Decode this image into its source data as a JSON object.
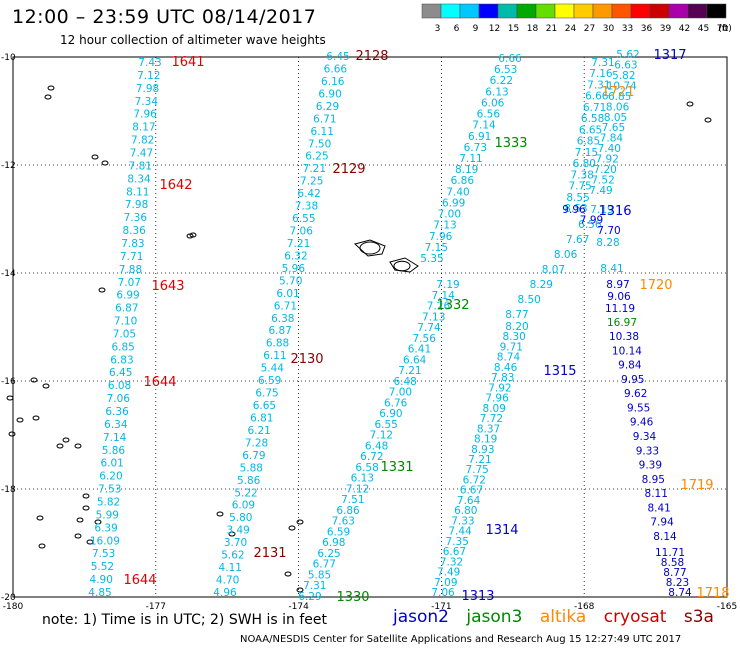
{
  "header": {
    "title": "12:00 – 23:59 UTC 08/14/2017",
    "subtitle": "12 hour collection of altimeter wave heights"
  },
  "colorbar": {
    "labels": [
      "3",
      "6",
      "9",
      "12",
      "15",
      "18",
      "21",
      "24",
      "27",
      "30",
      "33",
      "36",
      "39",
      "42",
      "45",
      "70"
    ],
    "unit": "(ft)",
    "colors": [
      "#8c8c8c",
      "#00ffff",
      "#00c8ff",
      "#0000ff",
      "#00bbaa",
      "#00aa00",
      "#66dd00",
      "#ffff00",
      "#ffcc00",
      "#ff9900",
      "#ff5500",
      "#ff0000",
      "#cc0000",
      "#aa00aa",
      "#550055",
      "#000000"
    ]
  },
  "axes": {
    "lat_labels": [
      "-10",
      "-12",
      "-14",
      "-16",
      "-18",
      "-20"
    ],
    "lon_labels": [
      "-180",
      "-177",
      "-174",
      "-171",
      "-168",
      "-165"
    ]
  },
  "footer": {
    "note": "note:  1) Time is in UTC;  2) SWH is in feet",
    "credit": "NOAA/NESDIS Center for Satellite Applications and Research     Aug 15 12:27:49 UTC 2017",
    "satellites": [
      {
        "name": "jason2",
        "color": "#0000cc"
      },
      {
        "name": "jason3",
        "color": "#008800"
      },
      {
        "name": "altika",
        "color": "#ff8800"
      },
      {
        "name": "cryosat",
        "color": "#cc0000"
      },
      {
        "name": "s3a",
        "color": "#880000"
      }
    ]
  },
  "colors": {
    "cyan": "#00b8e6",
    "blue": "#0000cc",
    "green": "#008800",
    "orange": "#ff8800",
    "red": "#dd0000",
    "maroon": "#880000",
    "grid": "#000000"
  },
  "tracks": [
    {
      "label": "1641",
      "label_color": "red",
      "values": [
        "7.43",
        "7.12",
        "7.98",
        "7.34",
        "7.96",
        "8.17",
        "7.82",
        "7.47",
        "7.81",
        "8.34",
        "8.11",
        "7.98",
        "7.36",
        "8.36",
        "7.83",
        "7.71",
        "7.88",
        "7.07",
        "6.99",
        "6.87",
        "7.10",
        "7.05",
        "6.85",
        "6.83",
        "6.45",
        "6.08",
        "7.06",
        "6.36",
        "6.34",
        "7.14",
        "5.86",
        "6.01",
        "6.20",
        "7.53",
        "5.82",
        "5.99",
        "6.39",
        "16.09",
        "7.53",
        "5.52",
        "4.90",
        "4.85"
      ]
    },
    {
      "label": "1642",
      "label_color": "red",
      "values": []
    },
    {
      "label": "1643",
      "label_color": "red",
      "values": []
    },
    {
      "label": "1644",
      "label_color": "red",
      "values": []
    },
    {
      "label": "2128",
      "label_color": "maroon",
      "values": [
        "6.45",
        "6.66",
        "6.16",
        "6.90",
        "6.29",
        "6.71",
        "6.11",
        "7.50",
        "6.25",
        "7.21",
        "7.25",
        "6.42",
        "7.38",
        "6.55",
        "7.06",
        "7.21",
        "6.32",
        "5.96",
        "5.70",
        "6.01",
        "6.71",
        "6.38",
        "6.87",
        "6.88",
        "6.11",
        "5.44",
        "6.59",
        "6.75",
        "6.65",
        "6.81",
        "6.21",
        "7.28",
        "6.79",
        "5.88",
        "5.86",
        "5.22",
        "6.09",
        "5.80",
        "3.49",
        "3.70",
        "5.62",
        "4.11",
        "4.70",
        "4.96"
      ]
    },
    {
      "label": "2129",
      "label_color": "maroon",
      "values": []
    },
    {
      "label": "2130",
      "label_color": "maroon",
      "values": []
    },
    {
      "label": "2131",
      "label_color": "maroon",
      "values": []
    },
    {
      "label": "1333",
      "label_color": "green",
      "values": [
        "6.66",
        "6.53",
        "6.22",
        "6.13",
        "6.06",
        "6.56",
        "7.14",
        "6.91",
        "6.73",
        "7.11",
        "8.19",
        "6.86",
        "7.40",
        "6.99",
        "7.00",
        "7.13",
        "7.96",
        "7.15",
        "5.35"
      ]
    },
    {
      "label": "1332",
      "label_color": "green",
      "values": [
        "7.19",
        "7.14",
        "7.26",
        "7.13",
        "7.74",
        "7.56",
        "6.41",
        "6.64",
        "7.21",
        "6.48",
        "7.00",
        "6.76",
        "6.90",
        "6.55",
        "7.12",
        "6.48",
        "6.72",
        "6.58",
        "6.13",
        "7.12",
        "7.51",
        "6.86",
        "7.63",
        "6.59",
        "6.98",
        "6.25",
        "6.77",
        "5.85",
        "7.31",
        "6.29"
      ]
    },
    {
      "label": "1331",
      "label_color": "green",
      "values": []
    },
    {
      "label": "1330",
      "label_color": "green",
      "values": []
    },
    {
      "label": "1317",
      "label_color": "blue",
      "values": [
        "7.31",
        "7.16",
        "7.31",
        "6.66",
        "6.71",
        "6.58",
        "6.65",
        "6.85",
        "7.15",
        "6.80",
        "7.38",
        "7.75",
        "8.55",
        "8.53",
        "7.19",
        "6.56",
        "7.67",
        "8.06",
        "8.07",
        "8.29",
        "8.50",
        "8.77",
        "8.20",
        "8.30",
        "9.71",
        "8.74",
        "8.46",
        "7.83",
        "7.92",
        "7.96",
        "8.09",
        "7.72",
        "8.37",
        "8.19",
        "8.93",
        "7.21",
        "7.75",
        "6.72",
        "6.67",
        "7.64",
        "6.80",
        "7.33",
        "7.44",
        "7.35",
        "6.67",
        "7.32",
        "7.49",
        "7.09",
        "7.06"
      ]
    },
    {
      "label": "1316",
      "label_color": "blue",
      "values": []
    },
    {
      "label": "1315",
      "label_color": "blue",
      "values": []
    },
    {
      "label": "1314",
      "label_color": "blue",
      "values": []
    },
    {
      "label": "1313",
      "label_color": "blue",
      "values": []
    },
    {
      "label": "1721",
      "label_color": "orange",
      "values": [
        "5.62",
        "6.63",
        "5.82",
        "10.74",
        "6.85",
        "8.06",
        "8.05",
        "7.65",
        "7.84",
        "7.40",
        "7.92",
        "7.20",
        "7.52",
        "7.49",
        "9.96",
        "7.99",
        "7.70",
        "8.28",
        "8.41",
        "8.97",
        "9.06",
        "11.19",
        "16.97",
        "10.38",
        "10.14",
        "9.84",
        "9.95",
        "9.62",
        "9.55",
        "9.46",
        "9.34",
        "9.33",
        "9.39",
        "8.95",
        "8.11",
        "8.41",
        "7.94",
        "8.14",
        "11.71",
        "8.58",
        "8.77",
        "8.23",
        "8.74"
      ]
    },
    {
      "label": "1720",
      "label_color": "orange",
      "values": []
    },
    {
      "label": "1719",
      "label_color": "orange",
      "values": []
    },
    {
      "label": "1718",
      "label_color": "orange",
      "values": []
    }
  ]
}
